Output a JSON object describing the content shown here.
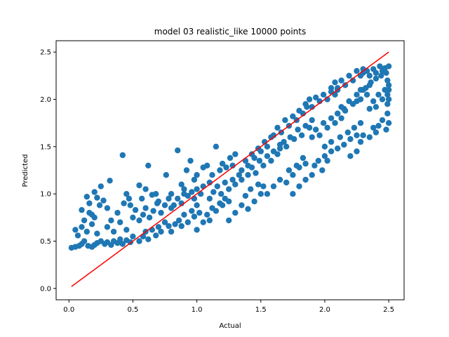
{
  "chart_data": {
    "type": "scatter",
    "title": "model 03 realistic_like 10000 points",
    "xlabel": "Actual",
    "ylabel": "Predicted",
    "xlim": [
      -0.1,
      2.62
    ],
    "ylim": [
      -0.12,
      2.62
    ],
    "x_ticks": [
      "0.0",
      "0.5",
      "1.0",
      "1.5",
      "2.0",
      "2.5"
    ],
    "x_tick_values": [
      0.0,
      0.5,
      1.0,
      1.5,
      2.0,
      2.5
    ],
    "y_ticks": [
      "0.0",
      "0.5",
      "1.0",
      "1.5",
      "2.0",
      "2.5"
    ],
    "y_tick_values": [
      0.0,
      0.5,
      1.0,
      1.5,
      2.0,
      2.5
    ],
    "grid": false,
    "legend": "none",
    "series": [
      {
        "kind": "scatter",
        "color": "#1f77b4",
        "n_points": 10000,
        "points": [
          [
            0.02,
            0.43
          ],
          [
            0.05,
            0.44
          ],
          [
            0.08,
            0.45
          ],
          [
            0.1,
            0.47
          ],
          [
            0.12,
            0.5
          ],
          [
            0.15,
            0.45
          ],
          [
            0.18,
            0.44
          ],
          [
            0.2,
            0.46
          ],
          [
            0.22,
            0.48
          ],
          [
            0.25,
            0.5
          ],
          [
            0.05,
            0.62
          ],
          [
            0.07,
            0.56
          ],
          [
            0.1,
            0.65
          ],
          [
            0.12,
            0.72
          ],
          [
            0.14,
            0.6
          ],
          [
            0.16,
            0.8
          ],
          [
            0.18,
            0.68
          ],
          [
            0.2,
            0.75
          ],
          [
            0.22,
            0.58
          ],
          [
            0.24,
            0.88
          ],
          [
            0.1,
            0.83
          ],
          [
            0.14,
            0.97
          ],
          [
            0.16,
            0.9
          ],
          [
            0.18,
            0.78
          ],
          [
            0.2,
            1.02
          ],
          [
            0.22,
            0.96
          ],
          [
            0.25,
            1.08
          ],
          [
            0.27,
            0.93
          ],
          [
            0.3,
            0.85
          ],
          [
            0.32,
            1.14
          ],
          [
            0.28,
            0.47
          ],
          [
            0.3,
            0.49
          ],
          [
            0.33,
            0.46
          ],
          [
            0.35,
            0.5
          ],
          [
            0.38,
            0.48
          ],
          [
            0.4,
            0.52
          ],
          [
            0.42,
            0.47
          ],
          [
            0.45,
            0.51
          ],
          [
            0.48,
            0.49
          ],
          [
            0.5,
            0.55
          ],
          [
            0.3,
            0.65
          ],
          [
            0.33,
            0.72
          ],
          [
            0.35,
            0.6
          ],
          [
            0.38,
            0.8
          ],
          [
            0.4,
            0.7
          ],
          [
            0.43,
            0.9
          ],
          [
            0.45,
            0.62
          ],
          [
            0.47,
            0.95
          ],
          [
            0.5,
            0.75
          ],
          [
            0.52,
            0.83
          ],
          [
            0.42,
            1.41
          ],
          [
            0.45,
            1.0
          ],
          [
            0.48,
            0.88
          ],
          [
            0.55,
            1.09
          ],
          [
            0.57,
            0.95
          ],
          [
            0.6,
            1.05
          ],
          [
            0.62,
            1.3
          ],
          [
            0.65,
            0.99
          ],
          [
            0.68,
            1.0
          ],
          [
            0.7,
            0.92
          ],
          [
            0.55,
            0.5
          ],
          [
            0.58,
            0.55
          ],
          [
            0.6,
            0.6
          ],
          [
            0.62,
            0.52
          ],
          [
            0.65,
            0.62
          ],
          [
            0.68,
            0.56
          ],
          [
            0.7,
            0.65
          ],
          [
            0.72,
            0.6
          ],
          [
            0.75,
            0.7
          ],
          [
            0.78,
            0.66
          ],
          [
            0.55,
            0.72
          ],
          [
            0.58,
            0.78
          ],
          [
            0.6,
            0.85
          ],
          [
            0.63,
            0.75
          ],
          [
            0.66,
            0.82
          ],
          [
            0.69,
            0.9
          ],
          [
            0.72,
            0.8
          ],
          [
            0.75,
            0.88
          ],
          [
            0.78,
            0.95
          ],
          [
            0.8,
            0.85
          ],
          [
            0.76,
            1.2
          ],
          [
            0.8,
            1.0
          ],
          [
            0.85,
            1.46
          ],
          [
            0.88,
            1.1
          ],
          [
            0.9,
            1.05
          ],
          [
            0.92,
            1.25
          ],
          [
            0.95,
            1.35
          ],
          [
            0.98,
            1.15
          ],
          [
            1.0,
            1.2
          ],
          [
            1.05,
            1.28
          ],
          [
            0.8,
            0.6
          ],
          [
            0.83,
            0.68
          ],
          [
            0.86,
            0.72
          ],
          [
            0.88,
            0.66
          ],
          [
            0.9,
            0.78
          ],
          [
            0.93,
            0.7
          ],
          [
            0.96,
            0.82
          ],
          [
            0.98,
            0.76
          ],
          [
            1.0,
            0.88
          ],
          [
            1.02,
            0.8
          ],
          [
            0.82,
            0.88
          ],
          [
            0.85,
            0.95
          ],
          [
            0.88,
            0.9
          ],
          [
            0.9,
            1.0
          ],
          [
            0.93,
            0.98
          ],
          [
            0.96,
            1.02
          ],
          [
            0.98,
            0.95
          ],
          [
            1.0,
            1.05
          ],
          [
            1.03,
            1.0
          ],
          [
            1.05,
            1.08
          ],
          [
            1.0,
            0.62
          ],
          [
            1.05,
            0.7
          ],
          [
            1.08,
            0.78
          ],
          [
            1.1,
            0.72
          ],
          [
            1.12,
            0.85
          ],
          [
            1.15,
            0.82
          ],
          [
            1.18,
            0.9
          ],
          [
            1.2,
            0.88
          ],
          [
            1.22,
            0.95
          ],
          [
            1.25,
            0.92
          ],
          [
            1.08,
            1.3
          ],
          [
            1.1,
            1.12
          ],
          [
            1.12,
            1.2
          ],
          [
            1.15,
            1.5
          ],
          [
            1.18,
            1.25
          ],
          [
            1.2,
            1.32
          ],
          [
            1.23,
            1.28
          ],
          [
            1.26,
            1.38
          ],
          [
            1.28,
            1.3
          ],
          [
            1.3,
            1.42
          ],
          [
            1.1,
            0.95
          ],
          [
            1.13,
            1.02
          ],
          [
            1.16,
            1.08
          ],
          [
            1.19,
            1.0
          ],
          [
            1.22,
            1.12
          ],
          [
            1.25,
            1.05
          ],
          [
            1.28,
            1.15
          ],
          [
            1.3,
            1.1
          ],
          [
            1.33,
            1.2
          ],
          [
            1.35,
            1.15
          ],
          [
            1.25,
            0.72
          ],
          [
            1.3,
            0.8
          ],
          [
            1.35,
            0.88
          ],
          [
            1.4,
            0.84
          ],
          [
            1.45,
            0.92
          ],
          [
            1.5,
            1.0
          ],
          [
            1.38,
            0.98
          ],
          [
            1.42,
            1.05
          ],
          [
            1.48,
            1.1
          ],
          [
            1.52,
            1.08
          ],
          [
            1.35,
            1.25
          ],
          [
            1.38,
            1.35
          ],
          [
            1.4,
            1.3
          ],
          [
            1.43,
            1.42
          ],
          [
            1.45,
            1.38
          ],
          [
            1.48,
            1.48
          ],
          [
            1.5,
            1.45
          ],
          [
            1.53,
            1.55
          ],
          [
            1.55,
            1.5
          ],
          [
            1.58,
            1.6
          ],
          [
            1.4,
            1.2
          ],
          [
            1.43,
            1.28
          ],
          [
            1.46,
            1.22
          ],
          [
            1.49,
            1.35
          ],
          [
            1.52,
            1.3
          ],
          [
            1.55,
            1.4
          ],
          [
            1.58,
            1.35
          ],
          [
            1.6,
            1.45
          ],
          [
            1.63,
            1.42
          ],
          [
            1.65,
            1.52
          ],
          [
            1.55,
            1.0
          ],
          [
            1.6,
            1.08
          ],
          [
            1.65,
            1.15
          ],
          [
            1.7,
            1.12
          ],
          [
            1.72,
            1.25
          ],
          [
            1.75,
            1.2
          ],
          [
            1.78,
            1.3
          ],
          [
            1.8,
            1.28
          ],
          [
            1.83,
            1.38
          ],
          [
            1.85,
            1.32
          ],
          [
            1.6,
            1.62
          ],
          [
            1.63,
            1.7
          ],
          [
            1.66,
            1.65
          ],
          [
            1.69,
            1.78
          ],
          [
            1.72,
            1.72
          ],
          [
            1.75,
            1.82
          ],
          [
            1.78,
            1.78
          ],
          [
            1.8,
            1.88
          ],
          [
            1.83,
            1.85
          ],
          [
            1.86,
            1.92
          ],
          [
            1.65,
            1.48
          ],
          [
            1.68,
            1.55
          ],
          [
            1.7,
            1.5
          ],
          [
            1.73,
            1.6
          ],
          [
            1.76,
            1.58
          ],
          [
            1.79,
            1.68
          ],
          [
            1.82,
            1.62
          ],
          [
            1.85,
            1.72
          ],
          [
            1.88,
            1.7
          ],
          [
            1.9,
            1.78
          ],
          [
            1.75,
            1.0
          ],
          [
            1.8,
            1.08
          ],
          [
            1.85,
            1.15
          ],
          [
            1.9,
            1.2
          ],
          [
            1.92,
            1.3
          ],
          [
            1.95,
            1.35
          ],
          [
            1.98,
            1.25
          ],
          [
            2.0,
            1.4
          ],
          [
            2.02,
            1.35
          ],
          [
            2.05,
            1.45
          ],
          [
            1.85,
            1.95
          ],
          [
            1.88,
            2.0
          ],
          [
            1.9,
            1.92
          ],
          [
            1.93,
            2.02
          ],
          [
            1.96,
            1.98
          ],
          [
            1.99,
            2.05
          ],
          [
            2.02,
            2.0
          ],
          [
            2.05,
            2.08
          ],
          [
            2.08,
            2.05
          ],
          [
            2.1,
            2.12
          ],
          [
            1.9,
            1.6
          ],
          [
            1.93,
            1.68
          ],
          [
            1.96,
            1.62
          ],
          [
            1.99,
            1.75
          ],
          [
            2.02,
            1.7
          ],
          [
            2.05,
            1.8
          ],
          [
            2.08,
            1.75
          ],
          [
            2.1,
            1.85
          ],
          [
            2.13,
            1.8
          ],
          [
            2.15,
            1.9
          ],
          [
            2.0,
            1.5
          ],
          [
            2.05,
            1.55
          ],
          [
            2.1,
            1.48
          ],
          [
            2.12,
            1.6
          ],
          [
            2.15,
            1.52
          ],
          [
            2.18,
            1.65
          ],
          [
            2.2,
            1.58
          ],
          [
            2.23,
            1.7
          ],
          [
            2.25,
            1.62
          ],
          [
            2.28,
            1.75
          ],
          [
            2.05,
            2.12
          ],
          [
            2.08,
            2.18
          ],
          [
            2.1,
            2.1
          ],
          [
            2.13,
            2.2
          ],
          [
            2.16,
            2.15
          ],
          [
            2.19,
            2.25
          ],
          [
            2.22,
            2.2
          ],
          [
            2.25,
            2.3
          ],
          [
            2.28,
            2.25
          ],
          [
            2.3,
            2.32
          ],
          [
            2.1,
            1.85
          ],
          [
            2.13,
            1.92
          ],
          [
            2.16,
            1.88
          ],
          [
            2.19,
            1.98
          ],
          [
            2.22,
            1.95
          ],
          [
            2.25,
            2.05
          ],
          [
            2.28,
            2.0
          ],
          [
            2.3,
            2.1
          ],
          [
            2.33,
            2.05
          ],
          [
            2.35,
            2.15
          ],
          [
            2.2,
            1.4
          ],
          [
            2.25,
            1.45
          ],
          [
            2.28,
            1.55
          ],
          [
            2.3,
            1.62
          ],
          [
            2.35,
            1.6
          ],
          [
            2.38,
            1.7
          ],
          [
            2.4,
            1.65
          ],
          [
            2.42,
            1.72
          ],
          [
            2.45,
            1.78
          ],
          [
            2.48,
            1.68
          ],
          [
            2.3,
            2.28
          ],
          [
            2.33,
            2.3
          ],
          [
            2.35,
            2.25
          ],
          [
            2.38,
            2.32
          ],
          [
            2.4,
            2.28
          ],
          [
            2.43,
            2.35
          ],
          [
            2.45,
            2.3
          ],
          [
            2.47,
            2.33
          ],
          [
            2.49,
            2.2
          ],
          [
            2.5,
            2.35
          ],
          [
            2.35,
            1.9
          ],
          [
            2.38,
            1.98
          ],
          [
            2.4,
            1.92
          ],
          [
            2.42,
            2.05
          ],
          [
            2.45,
            2.0
          ],
          [
            2.47,
            2.1
          ],
          [
            2.49,
            2.05
          ],
          [
            2.5,
            2.15
          ],
          [
            2.49,
            1.85
          ],
          [
            2.5,
            1.75
          ],
          [
            2.25,
            1.98
          ],
          [
            2.28,
            2.1
          ],
          [
            2.32,
            2.12
          ],
          [
            2.36,
            2.18
          ],
          [
            2.4,
            2.22
          ],
          [
            2.44,
            2.25
          ],
          [
            2.48,
            2.28
          ],
          [
            2.5,
            2.1
          ],
          [
            2.5,
            2.0
          ],
          [
            2.49,
            1.95
          ]
        ]
      },
      {
        "kind": "line",
        "color": "#ff0000",
        "x": [
          0.02,
          2.5
        ],
        "y": [
          0.02,
          2.5
        ]
      }
    ]
  }
}
